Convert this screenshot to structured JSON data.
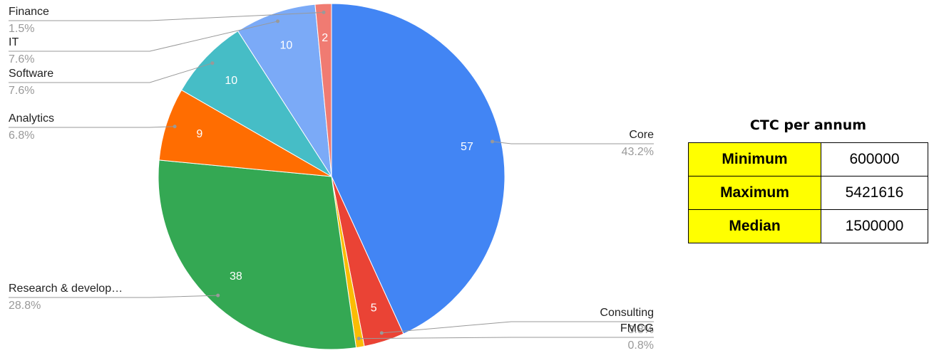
{
  "chart_data": {
    "type": "pie",
    "categories": [
      "Core",
      "Consulting",
      "FMCG",
      "Research & develop…",
      "Analytics",
      "Software",
      "IT",
      "Finance"
    ],
    "values": [
      57,
      5,
      1,
      38,
      9,
      10,
      10,
      2
    ],
    "percent_labels": [
      "43.2%",
      "3.8%",
      "0.8%",
      "28.8%",
      "6.8%",
      "7.6%",
      "7.6%",
      "1.5%"
    ],
    "colors": [
      "#4285f4",
      "#ea4335",
      "#fbbc04",
      "#34a853",
      "#ff6d01",
      "#46bdc6",
      "#7baaf7",
      "#f07b72"
    ]
  },
  "table": {
    "title": "CTC per annum",
    "rows": [
      [
        "Minimum",
        600000
      ],
      [
        "Maximum",
        5421616
      ],
      [
        "Median",
        1500000
      ]
    ]
  }
}
